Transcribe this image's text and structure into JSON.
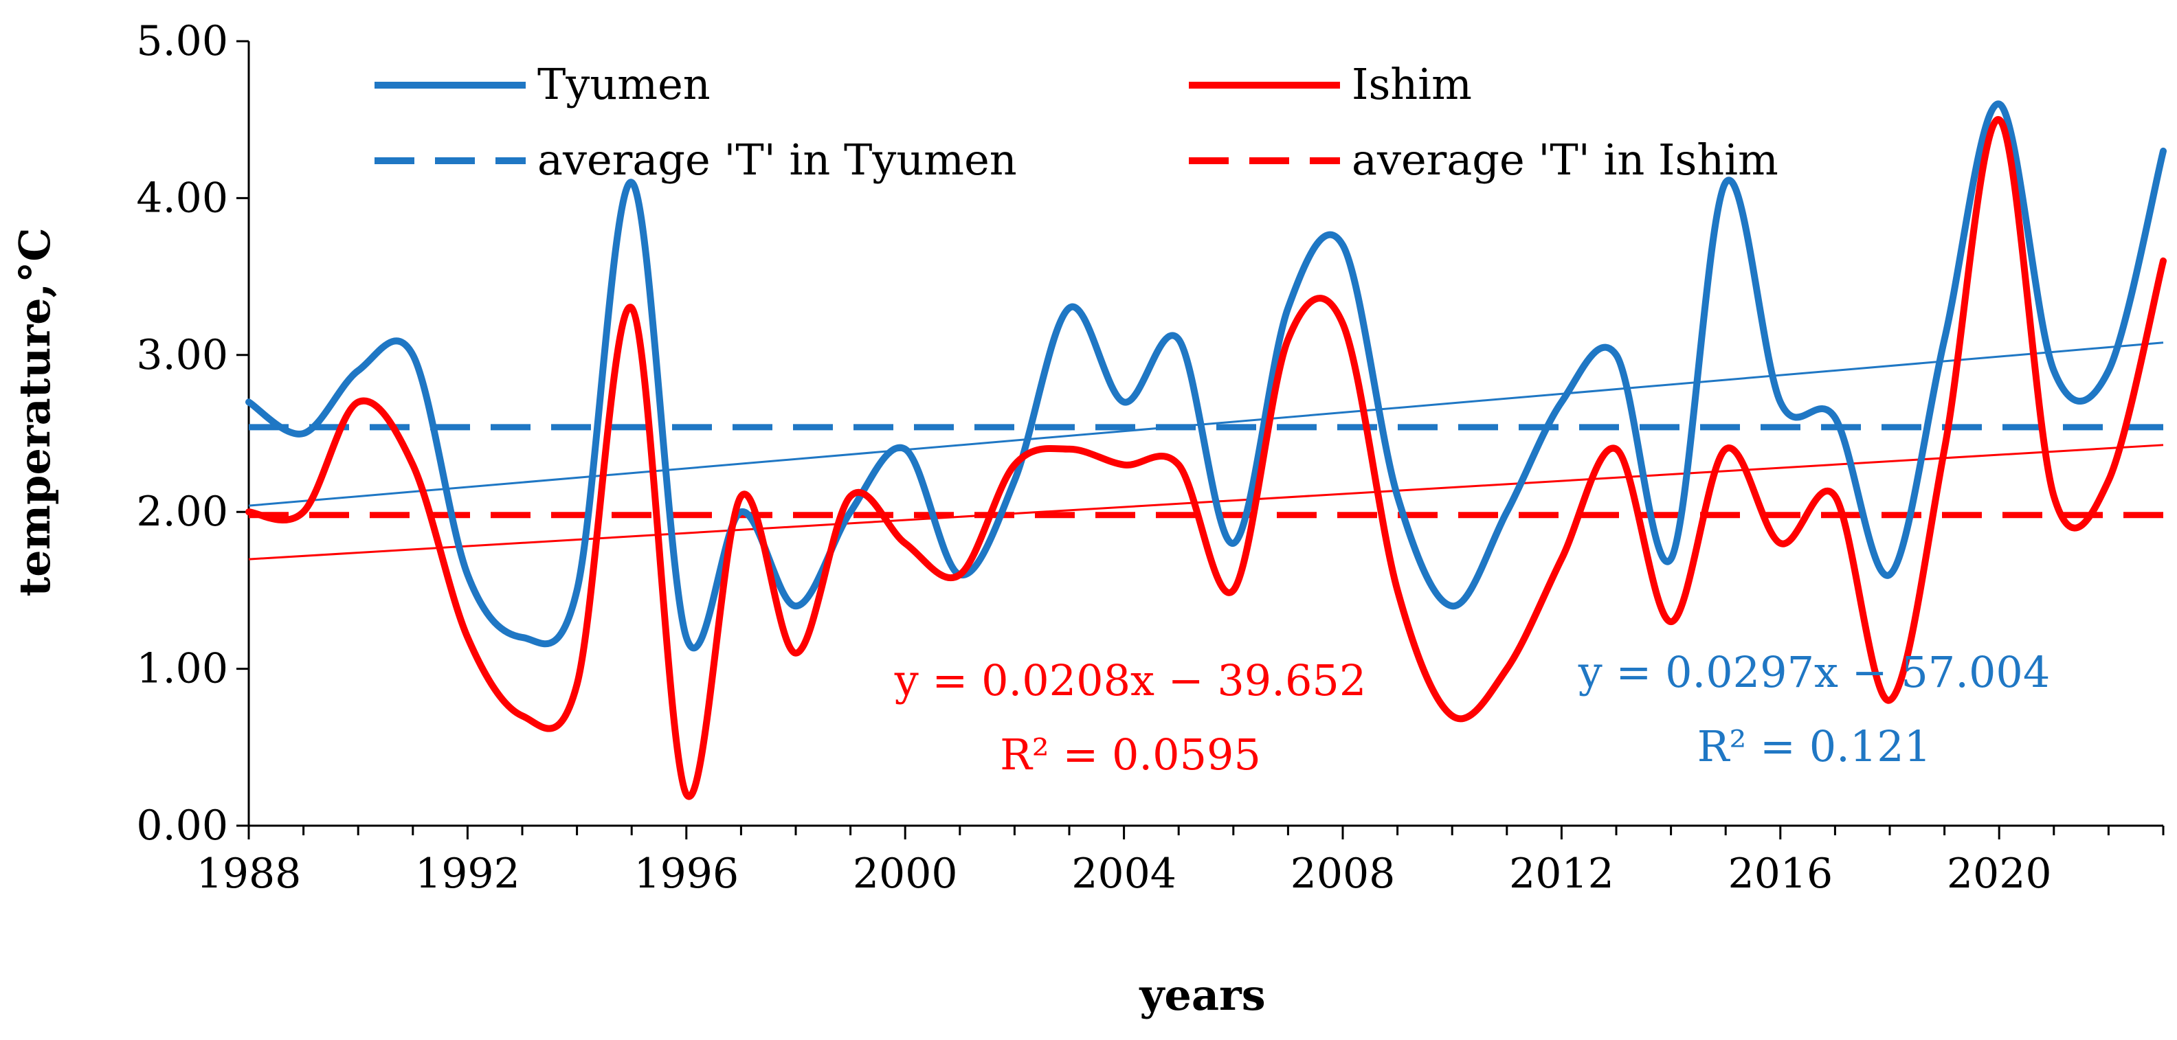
{
  "chart_data": {
    "type": "line",
    "xlabel": "years",
    "ylabel": "temperature,°C",
    "xlim": [
      1988,
      2023
    ],
    "ylim": [
      0,
      5
    ],
    "x_ticks": [
      1988,
      1992,
      1996,
      2000,
      2004,
      2008,
      2012,
      2016,
      2020
    ],
    "y_ticks": [
      "0.00",
      "1.00",
      "2.00",
      "3.00",
      "4.00",
      "5.00"
    ],
    "grid": false,
    "legend_position": "top",
    "colors": {
      "tyumen": "#1f77c4",
      "ishim": "#ff0000"
    },
    "x": [
      1988,
      1989,
      1990,
      1991,
      1992,
      1993,
      1994,
      1995,
      1996,
      1997,
      1998,
      1999,
      2000,
      2001,
      2002,
      2003,
      2004,
      2005,
      2006,
      2007,
      2008,
      2009,
      2010,
      2011,
      2012,
      2013,
      2014,
      2015,
      2016,
      2017,
      2018,
      2019,
      2020,
      2021,
      2022,
      2023
    ],
    "series": [
      {
        "name": "Tyumen",
        "color": "#1f77c4",
        "style": "solid",
        "values": [
          2.7,
          2.5,
          2.9,
          3.0,
          1.6,
          1.2,
          1.5,
          4.1,
          1.2,
          2.0,
          1.4,
          2.0,
          2.4,
          1.6,
          2.2,
          3.3,
          2.7,
          3.1,
          1.8,
          3.3,
          3.7,
          2.1,
          1.4,
          2.0,
          2.7,
          3.0,
          1.7,
          4.1,
          2.7,
          2.6,
          1.6,
          3.1,
          4.6,
          2.9,
          2.9,
          4.3
        ]
      },
      {
        "name": "Ishim",
        "color": "#ff0000",
        "style": "solid",
        "values": [
          2.0,
          2.0,
          2.7,
          2.3,
          1.2,
          0.7,
          0.9,
          3.3,
          0.2,
          2.1,
          1.1,
          2.1,
          1.8,
          1.6,
          2.3,
          2.4,
          2.3,
          2.3,
          1.5,
          3.1,
          3.2,
          1.5,
          0.7,
          1.0,
          1.7,
          2.4,
          1.3,
          2.4,
          1.8,
          2.1,
          0.8,
          2.4,
          4.5,
          2.1,
          2.2,
          3.6
        ]
      }
    ],
    "averages": [
      {
        "name": "average 'T' in Tyumen",
        "color": "#1f77c4",
        "value": 2.54
      },
      {
        "name": "average 'T' in Ishim",
        "color": "#ff0000",
        "value": 1.98
      }
    ],
    "trendlines": [
      {
        "series": "Tyumen",
        "color": "#1f77c4",
        "slope": 0.0297,
        "intercept": -57.004,
        "equation": "y = 0.0297x − 57.004",
        "r2": "R² = 0.121"
      },
      {
        "series": "Ishim",
        "color": "#ff0000",
        "slope": 0.0208,
        "intercept": -39.652,
        "equation": "y = 0.0208x − 39.652",
        "r2": "R² = 0.0595"
      }
    ],
    "legend": [
      {
        "label": "Tyumen",
        "color": "#1f77c4",
        "style": "solid"
      },
      {
        "label": "Ishim",
        "color": "#ff0000",
        "style": "solid"
      },
      {
        "label": "average 'T' in Tyumen",
        "color": "#1f77c4",
        "style": "dashed"
      },
      {
        "label": "average 'T' in Ishim",
        "color": "#ff0000",
        "style": "dashed"
      }
    ]
  }
}
